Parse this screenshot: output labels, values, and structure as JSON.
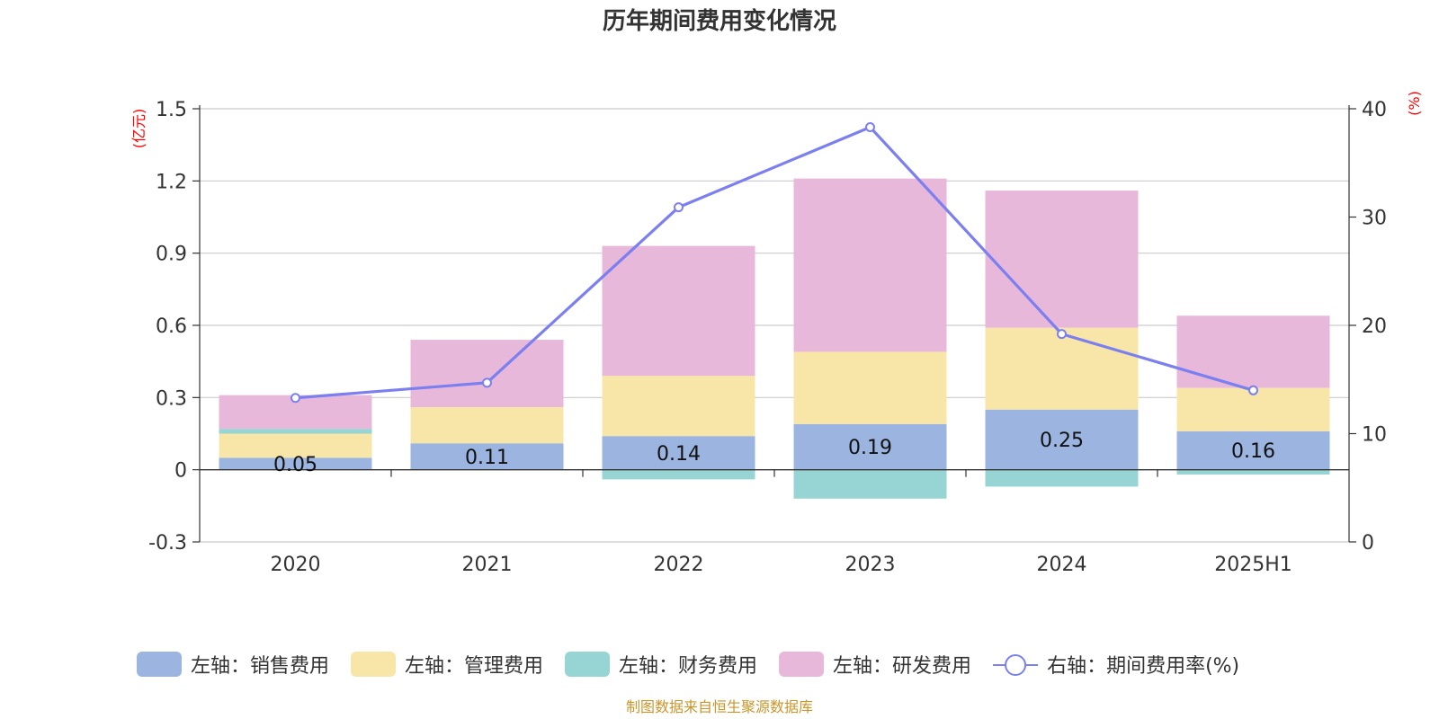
{
  "chart_data": {
    "type": "bar",
    "title": "历年期间费用变化情况",
    "categories": [
      "2020",
      "2021",
      "2022",
      "2023",
      "2024",
      "2025H1"
    ],
    "left_axis": {
      "unit": "(亿元)",
      "ylim": [
        -0.3,
        1.5
      ],
      "ticks": [
        -0.3,
        0,
        0.3,
        0.6,
        0.9,
        1.2,
        1.5
      ],
      "tick_labels": [
        "-0.3",
        "0",
        "0.3",
        "0.6",
        "0.9",
        "1.2",
        "1.5"
      ]
    },
    "right_axis": {
      "unit": "(%)",
      "ylim": [
        0,
        40
      ],
      "ticks": [
        0,
        10,
        20,
        30,
        40
      ],
      "tick_labels": [
        "0",
        "10",
        "20",
        "30",
        "40"
      ]
    },
    "series": [
      {
        "name": "左轴：销售费用",
        "axis": "left",
        "kind": "stacked-bar",
        "color": "#9bb5e0",
        "values": [
          0.05,
          0.11,
          0.14,
          0.19,
          0.25,
          0.16
        ],
        "data_labels": [
          "0.05",
          "0.11",
          "0.14",
          "0.19",
          "0.25",
          "0.16"
        ]
      },
      {
        "name": "左轴：管理费用",
        "axis": "left",
        "kind": "stacked-bar",
        "color": "#f8e6a8",
        "values": [
          0.1,
          0.15,
          0.25,
          0.3,
          0.34,
          0.18
        ]
      },
      {
        "name": "左轴：财务费用",
        "axis": "left",
        "kind": "stacked-bar",
        "color": "#97d4d4",
        "values": [
          0.02,
          0.0,
          -0.04,
          -0.12,
          -0.07,
          -0.02
        ]
      },
      {
        "name": "左轴：研发费用",
        "axis": "left",
        "kind": "stacked-bar",
        "color": "#e8b8da",
        "values": [
          0.14,
          0.28,
          0.54,
          0.72,
          0.57,
          0.3
        ]
      },
      {
        "name": "右轴：期间费用率(%)",
        "axis": "right",
        "kind": "line",
        "color": "#7b7fef",
        "values": [
          13.3,
          14.7,
          30.9,
          38.3,
          19.2,
          14.0
        ]
      }
    ],
    "grid": true,
    "legend_position": "bottom",
    "source_note": "制图数据来自恒生聚源数据库"
  }
}
